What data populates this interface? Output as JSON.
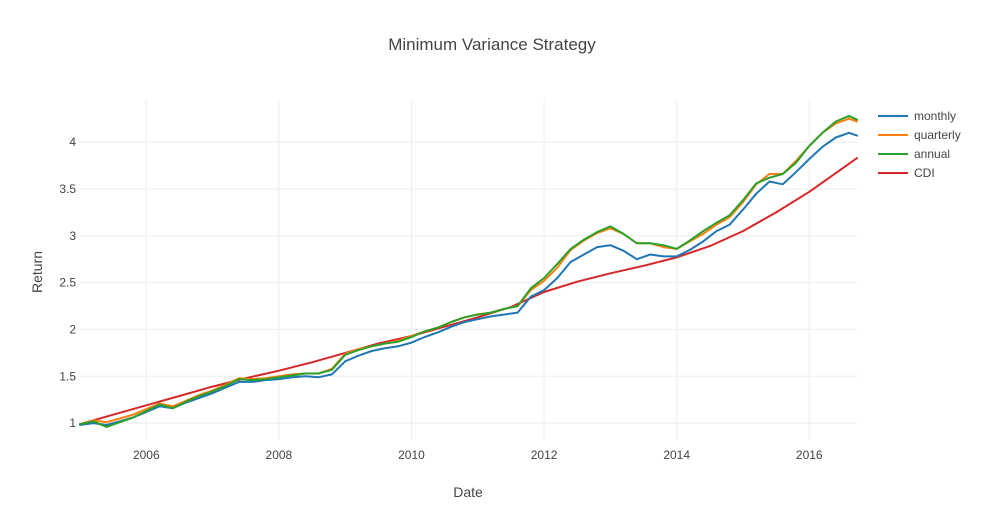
{
  "chart_data": {
    "type": "line",
    "title": "Minimum Variance Strategy",
    "xlabel": "Date",
    "ylabel": "Return",
    "xlim": [
      2005.0,
      2016.72
    ],
    "ylim": [
      0.82,
      4.45
    ],
    "x_ticks": [
      2006,
      2008,
      2010,
      2012,
      2014,
      2016
    ],
    "x_tick_labels": [
      "2006",
      "2008",
      "2010",
      "2012",
      "2014",
      "2016"
    ],
    "y_ticks": [
      1,
      1.5,
      2,
      2.5,
      3,
      3.5,
      4
    ],
    "y_tick_labels": [
      "1",
      "1.5",
      "2",
      "2.5",
      "3",
      "3.5",
      "4"
    ],
    "grid": true,
    "legend_position": "top-right",
    "series": [
      {
        "name": "monthly",
        "color": "#1f77b4",
        "x": [
          2005.0,
          2005.2,
          2005.4,
          2005.6,
          2005.8,
          2006.0,
          2006.2,
          2006.4,
          2006.6,
          2006.8,
          2007.0,
          2007.2,
          2007.4,
          2007.6,
          2007.8,
          2008.0,
          2008.2,
          2008.4,
          2008.6,
          2008.8,
          2009.0,
          2009.2,
          2009.4,
          2009.6,
          2009.8,
          2010.0,
          2010.2,
          2010.4,
          2010.6,
          2010.8,
          2011.0,
          2011.2,
          2011.4,
          2011.6,
          2011.8,
          2012.0,
          2012.2,
          2012.4,
          2012.6,
          2012.8,
          2013.0,
          2013.2,
          2013.4,
          2013.6,
          2013.8,
          2014.0,
          2014.2,
          2014.4,
          2014.6,
          2014.8,
          2015.0,
          2015.2,
          2015.4,
          2015.6,
          2015.8,
          2016.0,
          2016.2,
          2016.4,
          2016.6,
          2016.72
        ],
        "values": [
          0.98,
          1.0,
          0.98,
          1.02,
          1.06,
          1.12,
          1.18,
          1.16,
          1.22,
          1.27,
          1.32,
          1.38,
          1.44,
          1.44,
          1.46,
          1.47,
          1.49,
          1.5,
          1.49,
          1.52,
          1.66,
          1.72,
          1.77,
          1.8,
          1.82,
          1.86,
          1.92,
          1.97,
          2.03,
          2.08,
          2.11,
          2.14,
          2.16,
          2.18,
          2.35,
          2.42,
          2.55,
          2.72,
          2.8,
          2.88,
          2.9,
          2.84,
          2.75,
          2.8,
          2.78,
          2.78,
          2.85,
          2.94,
          3.05,
          3.12,
          3.28,
          3.45,
          3.58,
          3.55,
          3.68,
          3.82,
          3.95,
          4.05,
          4.1,
          4.07
        ]
      },
      {
        "name": "quarterly",
        "color": "#ff7f0e",
        "x": [
          2005.0,
          2005.2,
          2005.4,
          2005.6,
          2005.8,
          2006.0,
          2006.2,
          2006.4,
          2006.6,
          2006.8,
          2007.0,
          2007.2,
          2007.4,
          2007.6,
          2007.8,
          2008.0,
          2008.2,
          2008.4,
          2008.6,
          2008.8,
          2009.0,
          2009.2,
          2009.4,
          2009.6,
          2009.8,
          2010.0,
          2010.2,
          2010.4,
          2010.6,
          2010.8,
          2011.0,
          2011.2,
          2011.4,
          2011.6,
          2011.8,
          2012.0,
          2012.2,
          2012.4,
          2012.6,
          2012.8,
          2013.0,
          2013.2,
          2013.4,
          2013.6,
          2013.8,
          2014.0,
          2014.2,
          2014.4,
          2014.6,
          2014.8,
          2015.0,
          2015.2,
          2015.4,
          2015.6,
          2015.8,
          2016.0,
          2016.2,
          2016.4,
          2016.6,
          2016.72
        ],
        "values": [
          0.99,
          1.03,
          1.01,
          1.05,
          1.09,
          1.15,
          1.21,
          1.18,
          1.24,
          1.3,
          1.35,
          1.41,
          1.48,
          1.47,
          1.48,
          1.5,
          1.52,
          1.53,
          1.53,
          1.58,
          1.74,
          1.79,
          1.82,
          1.85,
          1.88,
          1.93,
          1.98,
          2.02,
          2.08,
          2.13,
          2.16,
          2.18,
          2.22,
          2.25,
          2.42,
          2.52,
          2.66,
          2.85,
          2.95,
          3.03,
          3.08,
          3.02,
          2.92,
          2.92,
          2.88,
          2.86,
          2.94,
          3.02,
          3.12,
          3.2,
          3.36,
          3.55,
          3.66,
          3.66,
          3.8,
          3.96,
          4.1,
          4.2,
          4.25,
          4.22
        ]
      },
      {
        "name": "annual",
        "color": "#2ca02c",
        "x": [
          2005.0,
          2005.2,
          2005.4,
          2005.6,
          2005.8,
          2006.0,
          2006.2,
          2006.4,
          2006.6,
          2006.8,
          2007.0,
          2007.2,
          2007.4,
          2007.6,
          2007.8,
          2008.0,
          2008.2,
          2008.4,
          2008.6,
          2008.8,
          2009.0,
          2009.2,
          2009.4,
          2009.6,
          2009.8,
          2010.0,
          2010.2,
          2010.4,
          2010.6,
          2010.8,
          2011.0,
          2011.2,
          2011.4,
          2011.6,
          2011.8,
          2012.0,
          2012.2,
          2012.4,
          2012.6,
          2012.8,
          2013.0,
          2013.2,
          2013.4,
          2013.6,
          2013.8,
          2014.0,
          2014.2,
          2014.4,
          2014.6,
          2014.8,
          2015.0,
          2015.2,
          2015.4,
          2015.6,
          2015.8,
          2016.0,
          2016.2,
          2016.4,
          2016.6,
          2016.72
        ],
        "values": [
          0.99,
          1.02,
          0.96,
          1.01,
          1.06,
          1.13,
          1.2,
          1.16,
          1.23,
          1.29,
          1.34,
          1.4,
          1.47,
          1.46,
          1.47,
          1.49,
          1.51,
          1.53,
          1.53,
          1.57,
          1.73,
          1.78,
          1.82,
          1.85,
          1.87,
          1.92,
          1.98,
          2.02,
          2.08,
          2.13,
          2.16,
          2.18,
          2.22,
          2.25,
          2.44,
          2.55,
          2.7,
          2.86,
          2.96,
          3.04,
          3.1,
          3.02,
          2.92,
          2.92,
          2.9,
          2.86,
          2.95,
          3.05,
          3.14,
          3.22,
          3.38,
          3.56,
          3.62,
          3.66,
          3.78,
          3.96,
          4.1,
          4.22,
          4.28,
          4.24
        ]
      },
      {
        "name": "CDI",
        "color": "#d62728",
        "x": [
          2005.0,
          2005.5,
          2006.0,
          2006.5,
          2007.0,
          2007.5,
          2008.0,
          2008.5,
          2009.0,
          2009.5,
          2010.0,
          2010.5,
          2011.0,
          2011.5,
          2012.0,
          2012.5,
          2013.0,
          2013.5,
          2014.0,
          2014.5,
          2015.0,
          2015.5,
          2016.0,
          2016.5,
          2016.72
        ],
        "values": [
          0.99,
          1.09,
          1.19,
          1.29,
          1.39,
          1.48,
          1.56,
          1.65,
          1.75,
          1.85,
          1.93,
          2.03,
          2.13,
          2.24,
          2.4,
          2.51,
          2.6,
          2.68,
          2.77,
          2.89,
          3.05,
          3.25,
          3.47,
          3.72,
          3.83
        ]
      }
    ]
  }
}
